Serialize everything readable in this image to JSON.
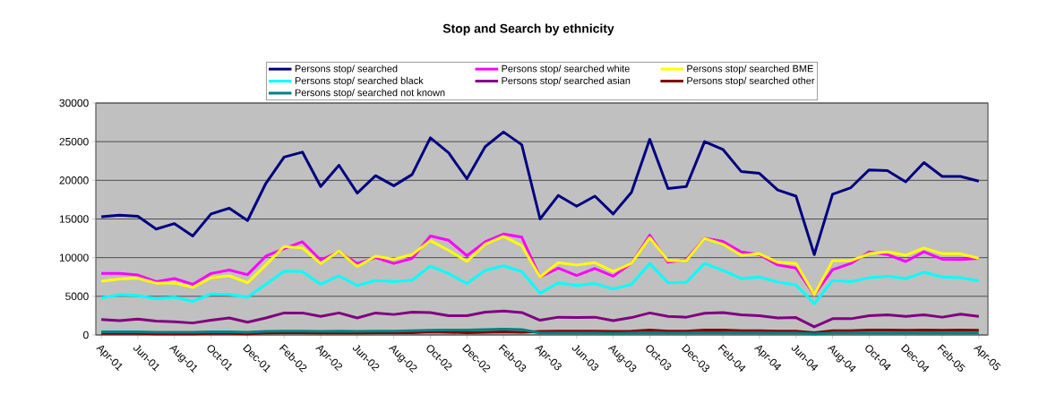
{
  "chart_data": {
    "type": "line",
    "title": "Stop and Search by ethnicity",
    "categories": [
      "Apr-01",
      null,
      "Jun-01",
      null,
      "Aug-01",
      null,
      "Oct-01",
      null,
      "Dec-01",
      null,
      "Feb-02",
      null,
      "Apr-02",
      null,
      "Jun-02",
      null,
      "Aug-02",
      null,
      "Oct-02",
      null,
      "Dec-02",
      null,
      "Feb-03",
      null,
      "Apr-03",
      null,
      "Jun-03",
      null,
      "Aug-03",
      null,
      "Oct-03",
      null,
      "Dec-03",
      null,
      "Feb-04",
      null,
      "Apr-04",
      null,
      "Jun-04",
      null,
      "Aug-04",
      null,
      "Oct-04",
      null,
      "Dec-04",
      null,
      "Feb-05",
      null,
      "Apr-05"
    ],
    "series": [
      {
        "name": "Persons stop/ searched",
        "color": "#000080",
        "values": [
          15300,
          15500,
          15350,
          13700,
          14400,
          12800,
          15650,
          16400,
          14800,
          19600,
          23000,
          23650,
          19200,
          21950,
          18350,
          20600,
          19300,
          20750,
          25500,
          23550,
          20200,
          24350,
          26250,
          24600,
          15000,
          18050,
          16650,
          17950,
          15650,
          18450,
          25300,
          18950,
          19200,
          25000,
          24000,
          21150,
          20900,
          18750,
          17950,
          10400,
          18200,
          19050,
          21350,
          21250,
          19800,
          22300,
          20500,
          20500,
          19900
        ]
      },
      {
        "name": "Persons stop/ searched white",
        "color": "#ff00ff",
        "values": [
          7950,
          7950,
          7750,
          6900,
          7300,
          6550,
          7950,
          8400,
          7800,
          10200,
          11150,
          12050,
          9700,
          10750,
          9250,
          10000,
          9250,
          9900,
          12800,
          12250,
          10250,
          12050,
          13050,
          12650,
          7500,
          8650,
          7700,
          8600,
          7600,
          9250,
          12900,
          9400,
          9750,
          12500,
          12100,
          10750,
          10400,
          9050,
          8650,
          5200,
          8450,
          9250,
          10750,
          10400,
          9500,
          10750,
          9800,
          9750,
          9900
        ]
      },
      {
        "name": "Persons stop/ searched BME",
        "color": "#ffff00",
        "values": [
          6950,
          7250,
          7350,
          6700,
          6750,
          6150,
          7400,
          7650,
          6750,
          9050,
          11450,
          11250,
          9250,
          10850,
          8850,
          10200,
          9800,
          10400,
          12200,
          10950,
          9500,
          11750,
          12750,
          11550,
          7500,
          9350,
          9050,
          9350,
          8200,
          9250,
          12600,
          9600,
          9600,
          12500,
          11750,
          10300,
          10500,
          9400,
          9250,
          5200,
          9600,
          9600,
          10500,
          10750,
          10300,
          11250,
          10500,
          10500,
          9900
        ]
      },
      {
        "name": "Persons stop/ searched black",
        "color": "#00ffff",
        "values": [
          4800,
          5200,
          5100,
          4700,
          4900,
          4350,
          5300,
          5250,
          4900,
          6550,
          8250,
          8200,
          6550,
          7650,
          6400,
          7050,
          6900,
          7100,
          8900,
          7950,
          6650,
          8350,
          8950,
          8200,
          5400,
          6750,
          6400,
          6650,
          5950,
          6550,
          9250,
          6750,
          6800,
          9250,
          8350,
          7300,
          7500,
          6850,
          6450,
          4050,
          7050,
          6900,
          7400,
          7600,
          7300,
          8100,
          7500,
          7400,
          7000
        ]
      },
      {
        "name": "Persons stop/ searched asian",
        "color": "#800080",
        "values": [
          2000,
          1850,
          2050,
          1800,
          1700,
          1550,
          1900,
          2200,
          1650,
          2200,
          2850,
          2850,
          2400,
          2850,
          2200,
          2850,
          2650,
          2950,
          2900,
          2500,
          2500,
          2950,
          3100,
          2900,
          1900,
          2300,
          2250,
          2300,
          1850,
          2250,
          2850,
          2400,
          2300,
          2800,
          2900,
          2600,
          2500,
          2200,
          2250,
          1050,
          2100,
          2100,
          2500,
          2600,
          2400,
          2600,
          2300,
          2700,
          2400
        ]
      },
      {
        "name": "Persons stop/ searched other",
        "color": "#800000",
        "values": [
          200,
          200,
          200,
          150,
          150,
          150,
          200,
          200,
          150,
          250,
          300,
          300,
          250,
          300,
          250,
          300,
          300,
          300,
          400,
          350,
          300,
          350,
          400,
          350,
          450,
          500,
          500,
          500,
          450,
          500,
          650,
          500,
          500,
          650,
          650,
          550,
          550,
          500,
          500,
          300,
          550,
          550,
          650,
          650,
          600,
          650,
          600,
          650,
          600
        ]
      },
      {
        "name": "Persons stop/ searched not known",
        "color": "#008080",
        "values": [
          400,
          400,
          400,
          350,
          350,
          350,
          400,
          400,
          350,
          450,
          500,
          500,
          450,
          500,
          450,
          500,
          500,
          550,
          600,
          650,
          650,
          700,
          750,
          700,
          250,
          250,
          250,
          250,
          200,
          250,
          300,
          250,
          250,
          300,
          300,
          250,
          250,
          250,
          250,
          150,
          250,
          250,
          250,
          250,
          250,
          250,
          250,
          250,
          250
        ]
      }
    ],
    "ylim": [
      0,
      30000
    ],
    "yticks": [
      0,
      5000,
      10000,
      15000,
      20000,
      25000,
      30000
    ],
    "grid": "y",
    "legend": "top",
    "marker": "none",
    "line_style": "solid"
  }
}
